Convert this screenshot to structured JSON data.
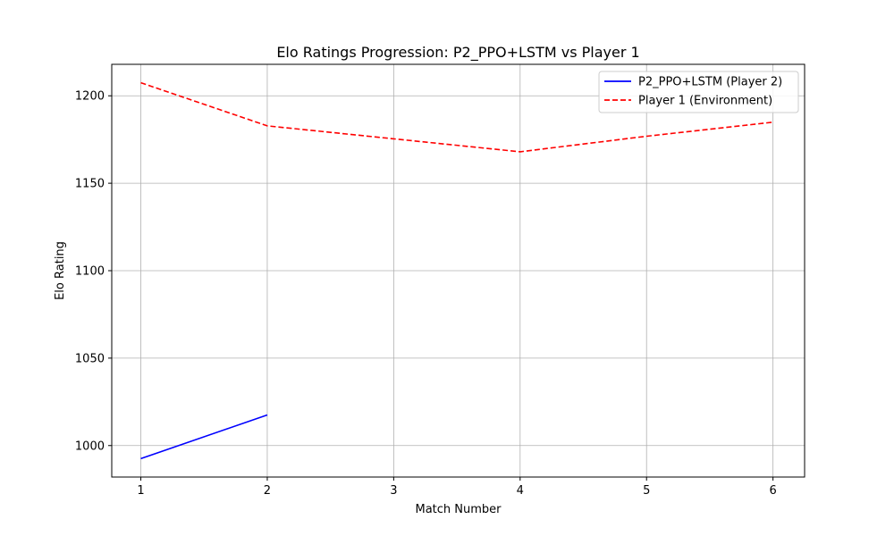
{
  "chart_data": {
    "type": "line",
    "title": "Elo Ratings Progression: P2_PPO+LSTM vs Player 1",
    "xlabel": "Match Number",
    "ylabel": "Elo Rating",
    "xlim": [
      0.77,
      6.25
    ],
    "ylim": [
      982,
      1218
    ],
    "xticks": [
      1,
      2,
      3,
      4,
      5,
      6
    ],
    "yticks": [
      1000,
      1050,
      1100,
      1150,
      1200
    ],
    "grid": true,
    "legend_position": "top-right",
    "series": [
      {
        "name": "P2_PPO+LSTM (Player 2)",
        "x": [
          1,
          2
        ],
        "y": [
          992.5,
          1017.5
        ],
        "color": "#0000ff",
        "line_style": "solid"
      },
      {
        "name": "Player 1 (Environment)",
        "x": [
          1,
          2,
          3,
          4,
          5,
          6
        ],
        "y": [
          1207.5,
          1182.8,
          1175.4,
          1168.0,
          1176.9,
          1184.9
        ],
        "color": "#ff0000",
        "line_style": "dashed"
      }
    ]
  }
}
